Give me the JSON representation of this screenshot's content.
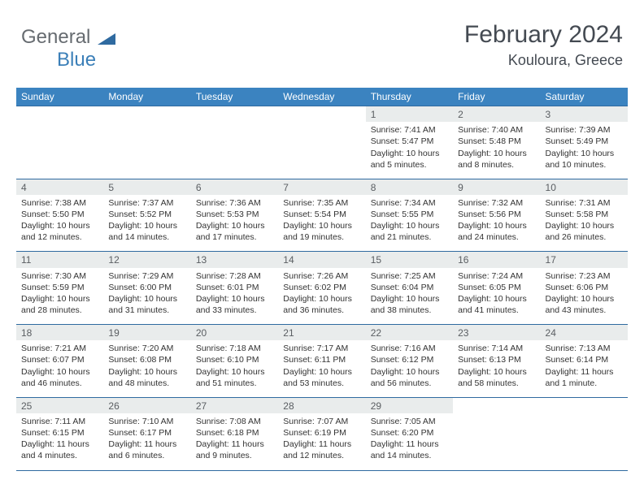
{
  "logo": {
    "part1": "General",
    "part2": "Blue"
  },
  "header": {
    "month": "February 2024",
    "location": "Kouloura, Greece"
  },
  "columns": [
    "Sunday",
    "Monday",
    "Tuesday",
    "Wednesday",
    "Thursday",
    "Friday",
    "Saturday"
  ],
  "colors": {
    "header_bg": "#3b83c0",
    "header_text": "#ffffff",
    "daynum_bg": "#e9ecec",
    "row_border": "#2f6aa0",
    "text": "#333333",
    "title_text": "#444a52",
    "logo_gray": "#666b70",
    "logo_blue": "#3b7fb8"
  },
  "weeks": [
    [
      null,
      null,
      null,
      null,
      {
        "n": "1",
        "sunrise": "7:41 AM",
        "sunset": "5:47 PM",
        "daylight": "10 hours and 5 minutes."
      },
      {
        "n": "2",
        "sunrise": "7:40 AM",
        "sunset": "5:48 PM",
        "daylight": "10 hours and 8 minutes."
      },
      {
        "n": "3",
        "sunrise": "7:39 AM",
        "sunset": "5:49 PM",
        "daylight": "10 hours and 10 minutes."
      }
    ],
    [
      {
        "n": "4",
        "sunrise": "7:38 AM",
        "sunset": "5:50 PM",
        "daylight": "10 hours and 12 minutes."
      },
      {
        "n": "5",
        "sunrise": "7:37 AM",
        "sunset": "5:52 PM",
        "daylight": "10 hours and 14 minutes."
      },
      {
        "n": "6",
        "sunrise": "7:36 AM",
        "sunset": "5:53 PM",
        "daylight": "10 hours and 17 minutes."
      },
      {
        "n": "7",
        "sunrise": "7:35 AM",
        "sunset": "5:54 PM",
        "daylight": "10 hours and 19 minutes."
      },
      {
        "n": "8",
        "sunrise": "7:34 AM",
        "sunset": "5:55 PM",
        "daylight": "10 hours and 21 minutes."
      },
      {
        "n": "9",
        "sunrise": "7:32 AM",
        "sunset": "5:56 PM",
        "daylight": "10 hours and 24 minutes."
      },
      {
        "n": "10",
        "sunrise": "7:31 AM",
        "sunset": "5:58 PM",
        "daylight": "10 hours and 26 minutes."
      }
    ],
    [
      {
        "n": "11",
        "sunrise": "7:30 AM",
        "sunset": "5:59 PM",
        "daylight": "10 hours and 28 minutes."
      },
      {
        "n": "12",
        "sunrise": "7:29 AM",
        "sunset": "6:00 PM",
        "daylight": "10 hours and 31 minutes."
      },
      {
        "n": "13",
        "sunrise": "7:28 AM",
        "sunset": "6:01 PM",
        "daylight": "10 hours and 33 minutes."
      },
      {
        "n": "14",
        "sunrise": "7:26 AM",
        "sunset": "6:02 PM",
        "daylight": "10 hours and 36 minutes."
      },
      {
        "n": "15",
        "sunrise": "7:25 AM",
        "sunset": "6:04 PM",
        "daylight": "10 hours and 38 minutes."
      },
      {
        "n": "16",
        "sunrise": "7:24 AM",
        "sunset": "6:05 PM",
        "daylight": "10 hours and 41 minutes."
      },
      {
        "n": "17",
        "sunrise": "7:23 AM",
        "sunset": "6:06 PM",
        "daylight": "10 hours and 43 minutes."
      }
    ],
    [
      {
        "n": "18",
        "sunrise": "7:21 AM",
        "sunset": "6:07 PM",
        "daylight": "10 hours and 46 minutes."
      },
      {
        "n": "19",
        "sunrise": "7:20 AM",
        "sunset": "6:08 PM",
        "daylight": "10 hours and 48 minutes."
      },
      {
        "n": "20",
        "sunrise": "7:18 AM",
        "sunset": "6:10 PM",
        "daylight": "10 hours and 51 minutes."
      },
      {
        "n": "21",
        "sunrise": "7:17 AM",
        "sunset": "6:11 PM",
        "daylight": "10 hours and 53 minutes."
      },
      {
        "n": "22",
        "sunrise": "7:16 AM",
        "sunset": "6:12 PM",
        "daylight": "10 hours and 56 minutes."
      },
      {
        "n": "23",
        "sunrise": "7:14 AM",
        "sunset": "6:13 PM",
        "daylight": "10 hours and 58 minutes."
      },
      {
        "n": "24",
        "sunrise": "7:13 AM",
        "sunset": "6:14 PM",
        "daylight": "11 hours and 1 minute."
      }
    ],
    [
      {
        "n": "25",
        "sunrise": "7:11 AM",
        "sunset": "6:15 PM",
        "daylight": "11 hours and 4 minutes."
      },
      {
        "n": "26",
        "sunrise": "7:10 AM",
        "sunset": "6:17 PM",
        "daylight": "11 hours and 6 minutes."
      },
      {
        "n": "27",
        "sunrise": "7:08 AM",
        "sunset": "6:18 PM",
        "daylight": "11 hours and 9 minutes."
      },
      {
        "n": "28",
        "sunrise": "7:07 AM",
        "sunset": "6:19 PM",
        "daylight": "11 hours and 12 minutes."
      },
      {
        "n": "29",
        "sunrise": "7:05 AM",
        "sunset": "6:20 PM",
        "daylight": "11 hours and 14 minutes."
      },
      null,
      null
    ]
  ],
  "labels": {
    "sunrise": "Sunrise: ",
    "sunset": "Sunset: ",
    "daylight": "Daylight: "
  }
}
